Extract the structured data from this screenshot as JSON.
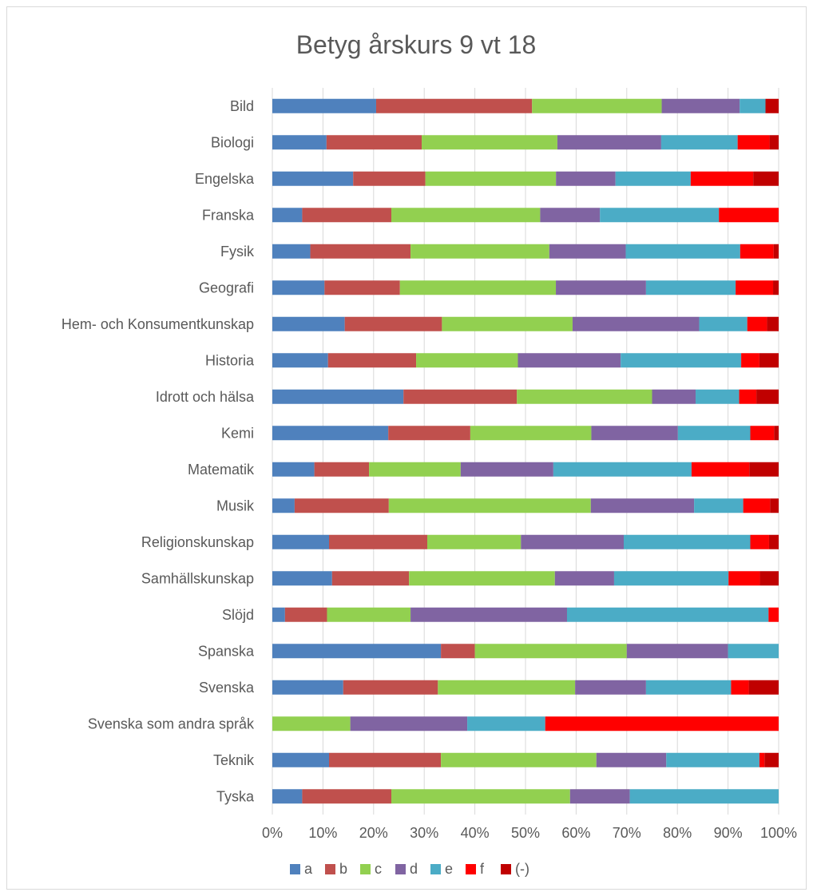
{
  "chart_data": {
    "type": "bar",
    "orientation": "horizontal",
    "stacked": "percent",
    "title": "Betyg årskurs 9 vt 18",
    "xlabel": "",
    "ylabel": "",
    "xlim": [
      0,
      100
    ],
    "x_ticks": [
      "0%",
      "10%",
      "20%",
      "30%",
      "40%",
      "50%",
      "60%",
      "70%",
      "80%",
      "90%",
      "100%"
    ],
    "grid": true,
    "legend_position": "bottom",
    "categories": [
      "Bild",
      "Biologi",
      "Engelska",
      "Franska",
      "Fysik",
      "Geografi",
      "Hem- och Konsumentkunskap",
      "Historia",
      "Idrott och hälsa",
      "Kemi",
      "Matematik",
      "Musik",
      "Religionskunskap",
      "Samhällskunskap",
      "Slöjd",
      "Spanska",
      "Svenska",
      "Svenska som andra språk",
      "Teknik",
      "Tyska"
    ],
    "series": [
      {
        "name": "a",
        "color": "#4f81bd",
        "values": [
          20.5,
          10.7,
          15.9,
          5.9,
          7.5,
          10.3,
          14.3,
          11.0,
          25.9,
          22.9,
          8.3,
          4.4,
          11.2,
          11.8,
          2.5,
          33.3,
          14.0,
          0,
          11.2,
          5.9
        ]
      },
      {
        "name": "b",
        "color": "#c0504d",
        "values": [
          30.8,
          18.8,
          14.2,
          17.6,
          19.8,
          14.9,
          19.2,
          17.4,
          22.4,
          16.2,
          10.8,
          18.6,
          19.4,
          15.2,
          8.3,
          6.7,
          18.7,
          0,
          22.1,
          17.6
        ]
      },
      {
        "name": "c",
        "color": "#92d050",
        "values": [
          25.6,
          26.8,
          25.7,
          29.4,
          27.4,
          30.8,
          25.8,
          20.1,
          26.7,
          23.9,
          18.1,
          39.9,
          18.5,
          28.8,
          16.5,
          30.0,
          27.1,
          15.4,
          30.7,
          35.3
        ]
      },
      {
        "name": "d",
        "color": "#8064a2",
        "values": [
          15.4,
          20.5,
          11.7,
          11.8,
          15.1,
          17.8,
          25.0,
          20.3,
          8.6,
          17.1,
          18.3,
          20.4,
          20.3,
          11.7,
          30.9,
          20.0,
          14.0,
          23.1,
          13.8,
          11.8
        ]
      },
      {
        "name": "e",
        "color": "#4bacc6",
        "values": [
          5.1,
          15.1,
          14.8,
          23.5,
          22.6,
          17.7,
          9.5,
          23.8,
          8.6,
          14.3,
          27.3,
          9.7,
          25.0,
          22.6,
          39.8,
          10.0,
          16.8,
          15.4,
          18.4,
          29.4
        ]
      },
      {
        "name": "f",
        "color": "#ff0000",
        "values": [
          0,
          6.3,
          12.3,
          11.8,
          6.6,
          7.4,
          3.9,
          3.6,
          3.4,
          4.7,
          11.4,
          5.3,
          3.7,
          6.2,
          2.0,
          0,
          3.5,
          46.1,
          1.0,
          0
        ]
      },
      {
        "name": "(-)",
        "color": "#c00000",
        "values": [
          2.6,
          1.8,
          5.0,
          0,
          1.0,
          1.1,
          2.3,
          3.8,
          4.4,
          0.9,
          5.8,
          1.7,
          1.9,
          3.7,
          0,
          0,
          5.9,
          0,
          2.8,
          0
        ]
      }
    ]
  }
}
